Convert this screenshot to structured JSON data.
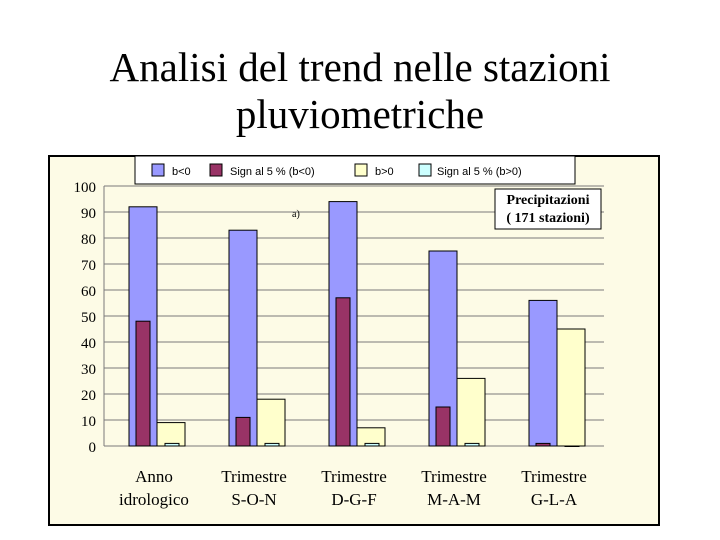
{
  "slide": {
    "title_line1": "Analisi del trend nelle stazioni",
    "title_line2": "pluviometriche"
  },
  "chart_data": {
    "type": "bar",
    "categories": [
      [
        "Anno",
        "idrologico"
      ],
      [
        "Trimestre",
        "S-O-N"
      ],
      [
        "Trimestre",
        "D-G-F"
      ],
      [
        "Trimestre",
        "M-A-M"
      ],
      [
        "Trimestre",
        "G-L-A"
      ]
    ],
    "series": [
      {
        "name": "b<0",
        "color": "#9999ff",
        "values": [
          92,
          83,
          94,
          75,
          56
        ]
      },
      {
        "name": "Sign al 5 % (b<0)",
        "color": "#993366",
        "values": [
          48,
          11,
          57,
          15,
          1
        ]
      },
      {
        "name": "b>0",
        "color": "#ffffcc",
        "values": [
          9,
          18,
          7,
          26,
          45
        ]
      },
      {
        "name": "Sign al 5 % (b>0)",
        "color": "#ccffff",
        "values": [
          1,
          1,
          1,
          1,
          0
        ]
      }
    ],
    "ylim": [
      0,
      100
    ],
    "yticks": [
      0,
      10,
      20,
      30,
      40,
      50,
      60,
      70,
      80,
      90,
      100
    ],
    "grid": true,
    "legend": "top",
    "annotation": "a)",
    "inset_box": [
      "Precipitazioni",
      "( 171 stazioni)"
    ]
  }
}
